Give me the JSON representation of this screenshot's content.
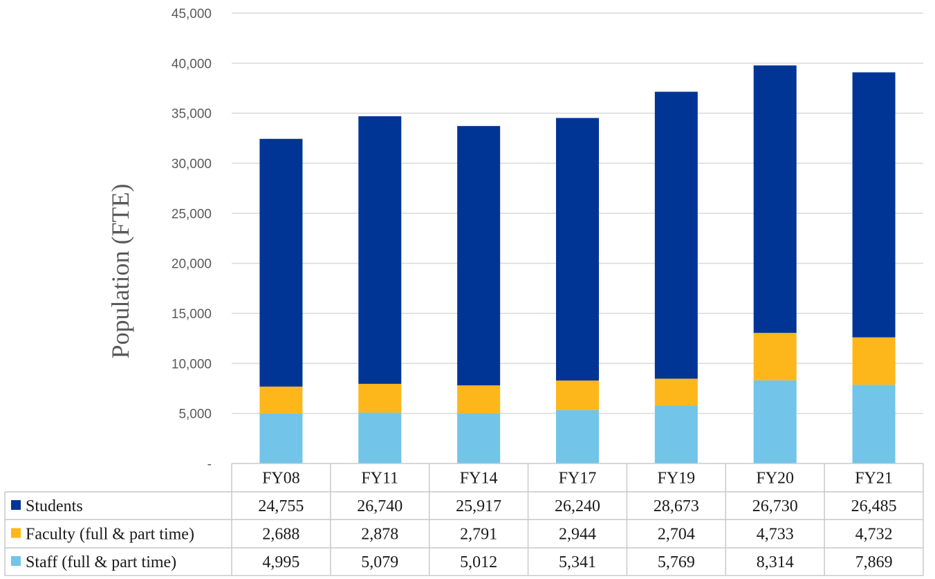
{
  "chart_data": {
    "type": "bar",
    "stacked": true,
    "title": "",
    "xlabel": "",
    "ylabel": "Population (FTE)",
    "ylim": [
      0,
      45000
    ],
    "yticks": [
      0,
      5000,
      10000,
      15000,
      20000,
      25000,
      30000,
      35000,
      40000,
      45000
    ],
    "ytick_labels": [
      "-",
      "5,000",
      "10,000",
      "15,000",
      "20,000",
      "25,000",
      "30,000",
      "35,000",
      "40,000",
      "45,000"
    ],
    "categories": [
      "FY08",
      "FY11",
      "FY14",
      "FY17",
      "FY19",
      "FY20",
      "FY21"
    ],
    "grid": true,
    "legend": "data-table",
    "series": [
      {
        "name": "Staff (full & part time)",
        "color": "#72C4E8",
        "values": [
          4995,
          5079,
          5012,
          5341,
          5769,
          8314,
          7869
        ],
        "labels": [
          "4,995",
          "5,079",
          "5,012",
          "5,341",
          "5,769",
          "8,314",
          "7,869"
        ]
      },
      {
        "name": "Faculty (full & part time)",
        "color": "#FDB71A",
        "values": [
          2688,
          2878,
          2791,
          2944,
          2704,
          4733,
          4732
        ],
        "labels": [
          "2,688",
          "2,878",
          "2,791",
          "2,944",
          "2,704",
          "4,733",
          "4,732"
        ]
      },
      {
        "name": "Students",
        "color": "#003595",
        "values": [
          24755,
          26740,
          25917,
          26240,
          28673,
          26730,
          26485
        ],
        "labels": [
          "24,755",
          "26,740",
          "25,917",
          "26,240",
          "28,673",
          "26,730",
          "26,485"
        ]
      }
    ],
    "table_order": [
      "Students",
      "Faculty (full & part time)",
      "Staff (full & part time)"
    ]
  }
}
